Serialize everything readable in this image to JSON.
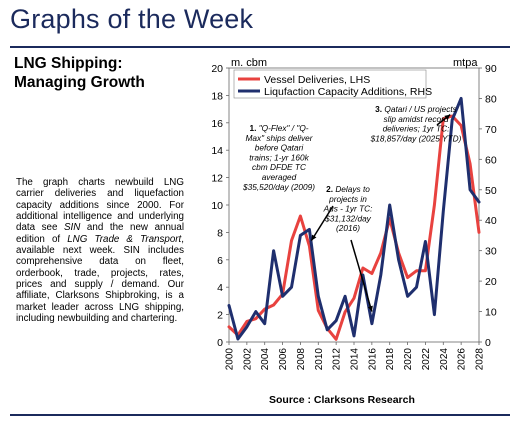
{
  "header": {
    "title": "Graphs of the Week"
  },
  "article": {
    "headline_lines": [
      "LNG Shipping:",
      "Managing Growth"
    ],
    "body": {
      "p1": "The graph charts newbuild LNG carrier deliveries and liquefaction capacity additions since 2000. For additional intelligence and underlying data see ",
      "sin1": "SIN",
      "p2": " and the new annual edition of ",
      "pub": "LNG Trade & Transport",
      "p3": ", available next week. SIN includes comprehensive data on fleet, orderbook, trade, projects, rates, prices and supply / demand. Our affiliate, Clarksons Shipbroking, is a market leader across LNG shipping, including newbuilding and chartering."
    }
  },
  "source": "Source : Clarksons Research",
  "colors": {
    "brand": "#1b2a5c",
    "vessel": "#e8423f",
    "liquefaction": "#1f2f6e"
  },
  "chart_data": {
    "type": "line",
    "left_unit": "m. cbm",
    "right_unit": "mtpa",
    "left_ylim": [
      0,
      20
    ],
    "right_ylim": [
      0,
      90
    ],
    "left_ticks": [
      0,
      2,
      4,
      6,
      8,
      10,
      12,
      14,
      16,
      18,
      20
    ],
    "right_ticks": [
      0,
      10,
      20,
      30,
      40,
      50,
      60,
      70,
      80,
      90
    ],
    "x_ticks": [
      "2000",
      "2002",
      "2004",
      "2006",
      "2008",
      "2010",
      "2012",
      "2014",
      "2016",
      "2018",
      "2020",
      "2022",
      "2024",
      "2026",
      "2028"
    ],
    "legend_position": "top",
    "series": [
      {
        "name": "Vessel Deliveries, LHS",
        "axis": "left",
        "color": "#e8423f",
        "x": [
          2000,
          2001,
          2002,
          2003,
          2004,
          2005,
          2006,
          2007,
          2008,
          2009,
          2010,
          2011,
          2012,
          2013,
          2014,
          2015,
          2016,
          2017,
          2018,
          2019,
          2020,
          2021,
          2022,
          2023,
          2024,
          2025,
          2026,
          2027,
          2028
        ],
        "values": [
          1.1,
          0.5,
          1.5,
          1.7,
          2.4,
          2.7,
          3.5,
          7.4,
          9.2,
          7.0,
          2.3,
          1.0,
          0.2,
          2.2,
          3.2,
          5.4,
          5.0,
          6.5,
          9.0,
          6.5,
          4.7,
          5.2,
          5.2,
          10.0,
          16.3,
          16.5,
          15.8,
          13.0,
          8.0
        ]
      },
      {
        "name": "Liqufaction Capacity Additions, RHS",
        "axis": "right",
        "color": "#1f2f6e",
        "x": [
          2000,
          2001,
          2002,
          2003,
          2004,
          2005,
          2006,
          2007,
          2008,
          2009,
          2010,
          2011,
          2012,
          2013,
          2014,
          2015,
          2016,
          2017,
          2018,
          2019,
          2020,
          2021,
          2022,
          2023,
          2024,
          2025,
          2026,
          2027,
          2028
        ],
        "values": [
          12,
          1,
          5,
          10,
          6,
          30,
          15,
          18,
          35,
          37,
          15,
          4,
          7,
          15,
          2,
          22,
          6,
          22,
          45,
          27,
          15,
          18,
          33,
          9,
          43,
          73,
          80,
          50,
          46
        ]
      }
    ],
    "annotations": [
      {
        "number": "1.",
        "lines": [
          "\"Q-Flex\" / \"Q-",
          "Max\" ships deliver",
          "before Qatari",
          "trains; 1-yr 160k",
          "cbm DFDE TC",
          "averaged",
          "$35,520/day (2009)"
        ]
      },
      {
        "number": "2.",
        "lines": [
          "Delays to",
          "projects in",
          "Aus - 1yr TC:",
          "$31,132/day",
          "(2016)"
        ]
      },
      {
        "number": "3.",
        "lines": [
          "Qatari / US projects",
          "slip amidst record",
          "deliveries; 1yr TC:",
          "$18,857/day (2025 YTD)"
        ]
      }
    ]
  }
}
